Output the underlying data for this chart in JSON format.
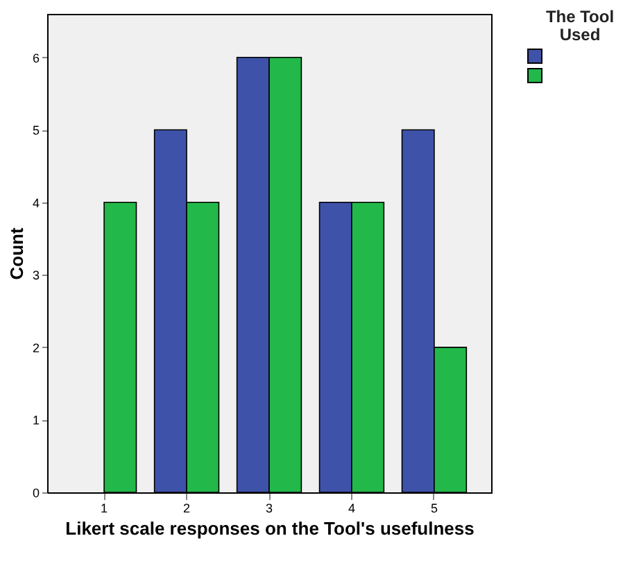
{
  "chart_data": {
    "type": "bar",
    "xlabel": "Likert scale responses on the Tool's usefulness",
    "ylabel": "Count",
    "legend_title": "The Tool Used",
    "categories": [
      "1",
      "2",
      "3",
      "4",
      "5"
    ],
    "series": [
      {
        "color": "#3f52a9",
        "values": [
          0,
          5,
          6,
          4,
          5
        ]
      },
      {
        "color": "#22b84a",
        "values": [
          4,
          4,
          6,
          4,
          2
        ]
      }
    ],
    "ylim": [
      0,
      6.6
    ],
    "yticks": [
      0,
      1,
      2,
      3,
      4,
      5,
      6
    ],
    "grid": false
  }
}
